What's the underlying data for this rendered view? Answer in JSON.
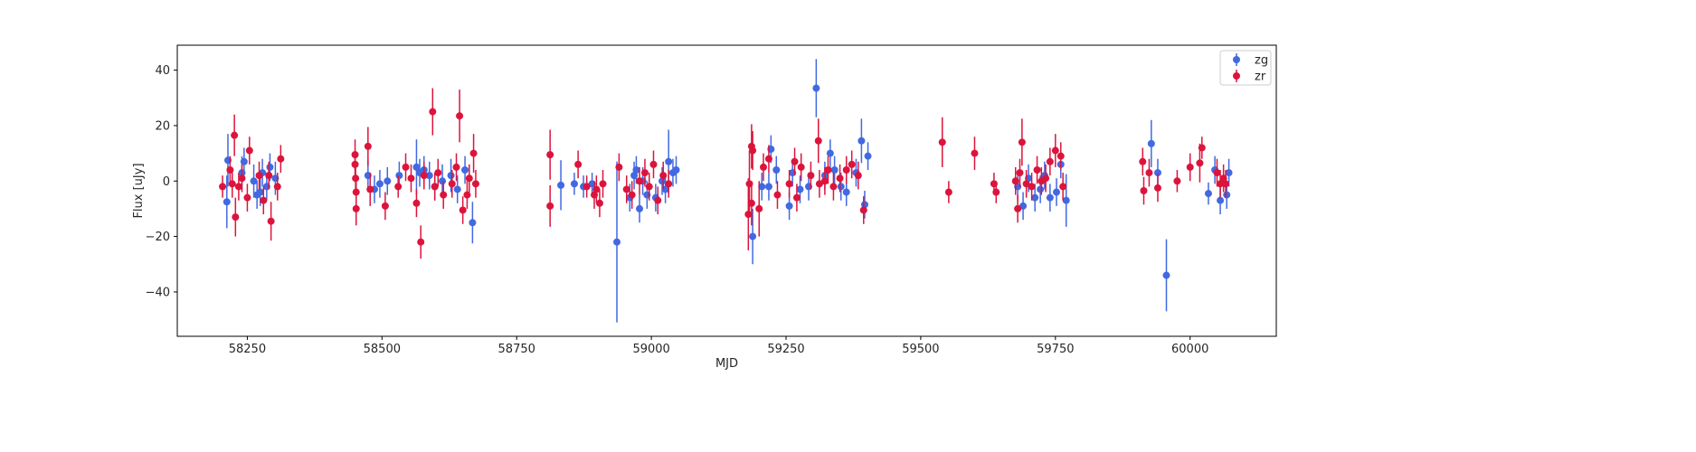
{
  "chart_data": {
    "type": "scatter",
    "title": "",
    "xlabel": "MJD",
    "ylabel": "Flux [uJy]",
    "xlim": [
      58120,
      60160
    ],
    "ylim": [
      -56,
      49
    ],
    "xticks": [
      58250,
      58500,
      58750,
      59000,
      59250,
      59500,
      59750,
      60000
    ],
    "yticks": [
      -40,
      -20,
      0,
      20,
      40
    ],
    "grid": false,
    "legend_position": "top-right",
    "series": [
      {
        "name": "zg",
        "color": "#4169e1",
        "points": [
          {
            "x": 58212,
            "y": -7.5,
            "err": 9.5
          },
          {
            "x": 58214,
            "y": 7.5,
            "err": 9.5
          },
          {
            "x": 58240,
            "y": 3,
            "err": 6
          },
          {
            "x": 58244,
            "y": 7,
            "err": 5
          },
          {
            "x": 58262,
            "y": 0,
            "err": 6
          },
          {
            "x": 58268,
            "y": -5,
            "err": 5
          },
          {
            "x": 58274,
            "y": -4,
            "err": 5
          },
          {
            "x": 58278,
            "y": 3,
            "err": 5
          },
          {
            "x": 58286,
            "y": -2,
            "err": 5
          },
          {
            "x": 58292,
            "y": 5,
            "err": 5
          },
          {
            "x": 58302,
            "y": 1,
            "err": 6
          },
          {
            "x": 58474,
            "y": 2,
            "err": 6
          },
          {
            "x": 58486,
            "y": -3,
            "err": 5
          },
          {
            "x": 58496,
            "y": -1,
            "err": 5
          },
          {
            "x": 58510,
            "y": 0,
            "err": 5
          },
          {
            "x": 58532,
            "y": 2,
            "err": 5
          },
          {
            "x": 58564,
            "y": 5,
            "err": 10
          },
          {
            "x": 58570,
            "y": 3,
            "err": 5
          },
          {
            "x": 58578,
            "y": 4,
            "err": 5
          },
          {
            "x": 58588,
            "y": 2,
            "err": 5
          },
          {
            "x": 58598,
            "y": -2,
            "err": 5
          },
          {
            "x": 58612,
            "y": 0,
            "err": 6
          },
          {
            "x": 58628,
            "y": 2,
            "err": 6
          },
          {
            "x": 58640,
            "y": -3,
            "err": 5
          },
          {
            "x": 58654,
            "y": 4,
            "err": 5
          },
          {
            "x": 58668,
            "y": -15,
            "err": 7.5
          },
          {
            "x": 58832,
            "y": -1.5,
            "err": 9
          },
          {
            "x": 58857,
            "y": -1,
            "err": 4
          },
          {
            "x": 58874,
            "y": -2,
            "err": 4
          },
          {
            "x": 58890,
            "y": -1,
            "err": 4
          },
          {
            "x": 58936,
            "y": -22,
            "err": 29
          },
          {
            "x": 58960,
            "y": -6,
            "err": 5
          },
          {
            "x": 58968,
            "y": 2,
            "err": 5
          },
          {
            "x": 58972,
            "y": 4,
            "err": 5
          },
          {
            "x": 58978,
            "y": -10,
            "err": 5
          },
          {
            "x": 58984,
            "y": 0,
            "err": 5
          },
          {
            "x": 58992,
            "y": -5,
            "err": 5
          },
          {
            "x": 59008,
            "y": -6,
            "err": 5
          },
          {
            "x": 59020,
            "y": 0,
            "err": 5
          },
          {
            "x": 59026,
            "y": -3,
            "err": 5
          },
          {
            "x": 59032,
            "y": 7,
            "err": 11.5
          },
          {
            "x": 59040,
            "y": 3,
            "err": 5
          },
          {
            "x": 59046,
            "y": 4,
            "err": 5
          },
          {
            "x": 59188,
            "y": -20,
            "err": 10
          },
          {
            "x": 59205,
            "y": -2,
            "err": 5
          },
          {
            "x": 59218,
            "y": -2,
            "err": 5
          },
          {
            "x": 59222,
            "y": 11.5,
            "err": 5
          },
          {
            "x": 59232,
            "y": 4,
            "err": 5
          },
          {
            "x": 59256,
            "y": -9,
            "err": 5
          },
          {
            "x": 59262,
            "y": 3,
            "err": 5
          },
          {
            "x": 59276,
            "y": -3,
            "err": 5
          },
          {
            "x": 59292,
            "y": -2,
            "err": 5
          },
          {
            "x": 59306,
            "y": 33.5,
            "err": 10.5
          },
          {
            "x": 59322,
            "y": 2,
            "err": 5
          },
          {
            "x": 59332,
            "y": 10,
            "err": 5
          },
          {
            "x": 59340,
            "y": 4,
            "err": 5
          },
          {
            "x": 59352,
            "y": -2,
            "err": 5
          },
          {
            "x": 59362,
            "y": -4,
            "err": 5
          },
          {
            "x": 59380,
            "y": 3,
            "err": 5
          },
          {
            "x": 59390,
            "y": 14.5,
            "err": 8
          },
          {
            "x": 59396,
            "y": -8.5,
            "err": 5
          },
          {
            "x": 59402,
            "y": 9,
            "err": 5
          },
          {
            "x": 59680,
            "y": -2,
            "err": 5
          },
          {
            "x": 59690,
            "y": -9,
            "err": 5
          },
          {
            "x": 59700,
            "y": 1,
            "err": 5
          },
          {
            "x": 59712,
            "y": -6,
            "err": 5
          },
          {
            "x": 59722,
            "y": -3,
            "err": 5
          },
          {
            "x": 59730,
            "y": 2,
            "err": 5
          },
          {
            "x": 59740,
            "y": -6,
            "err": 5
          },
          {
            "x": 59752,
            "y": -4,
            "err": 5
          },
          {
            "x": 59760,
            "y": 6,
            "err": 5
          },
          {
            "x": 59770,
            "y": -7,
            "err": 9.5
          },
          {
            "x": 59928,
            "y": 13.5,
            "err": 8.5
          },
          {
            "x": 59940,
            "y": 3,
            "err": 5
          },
          {
            "x": 59956,
            "y": -34,
            "err": 13
          },
          {
            "x": 60034,
            "y": -4.5,
            "err": 4
          },
          {
            "x": 60046,
            "y": 4,
            "err": 5
          },
          {
            "x": 60056,
            "y": -7,
            "err": 5
          },
          {
            "x": 60068,
            "y": -5,
            "err": 5
          },
          {
            "x": 60072,
            "y": 3,
            "err": 5
          }
        ]
      },
      {
        "name": "zr",
        "color": "#dc143c",
        "points": [
          {
            "x": 58204,
            "y": -2,
            "err": 4
          },
          {
            "x": 58218,
            "y": 4,
            "err": 5
          },
          {
            "x": 58222,
            "y": -1,
            "err": 5
          },
          {
            "x": 58226,
            "y": 16.5,
            "err": 7.5
          },
          {
            "x": 58228,
            "y": -13,
            "err": 7
          },
          {
            "x": 58234,
            "y": -2,
            "err": 5
          },
          {
            "x": 58240,
            "y": 1,
            "err": 5
          },
          {
            "x": 58250,
            "y": -6,
            "err": 5
          },
          {
            "x": 58254,
            "y": 11,
            "err": 5
          },
          {
            "x": 58272,
            "y": 2,
            "err": 5
          },
          {
            "x": 58280,
            "y": -7,
            "err": 5
          },
          {
            "x": 58290,
            "y": 2,
            "err": 5
          },
          {
            "x": 58294,
            "y": -14.5,
            "err": 7
          },
          {
            "x": 58306,
            "y": -2,
            "err": 5
          },
          {
            "x": 58312,
            "y": 8,
            "err": 5
          },
          {
            "x": 58450,
            "y": 9.5,
            "err": 5.5
          },
          {
            "x": 58450,
            "y": 6,
            "err": 5
          },
          {
            "x": 58451,
            "y": 1,
            "err": 5
          },
          {
            "x": 58452,
            "y": -4,
            "err": 5
          },
          {
            "x": 58452,
            "y": -10,
            "err": 6
          },
          {
            "x": 58474,
            "y": 12.5,
            "err": 7
          },
          {
            "x": 58478,
            "y": -3,
            "err": 6
          },
          {
            "x": 58506,
            "y": -9,
            "err": 5
          },
          {
            "x": 58530,
            "y": -2,
            "err": 4
          },
          {
            "x": 58544,
            "y": 5,
            "err": 5
          },
          {
            "x": 58554,
            "y": 1,
            "err": 5
          },
          {
            "x": 58564,
            "y": -8,
            "err": 5
          },
          {
            "x": 58572,
            "y": -22,
            "err": 6
          },
          {
            "x": 58578,
            "y": 2,
            "err": 5
          },
          {
            "x": 58594,
            "y": 25,
            "err": 8.5
          },
          {
            "x": 58598,
            "y": -2,
            "err": 5
          },
          {
            "x": 58604,
            "y": 3,
            "err": 5
          },
          {
            "x": 58614,
            "y": -5,
            "err": 5
          },
          {
            "x": 58630,
            "y": -1,
            "err": 5
          },
          {
            "x": 58638,
            "y": 5,
            "err": 5
          },
          {
            "x": 58644,
            "y": 23.5,
            "err": 9.5
          },
          {
            "x": 58650,
            "y": -10.5,
            "err": 5
          },
          {
            "x": 58658,
            "y": -5,
            "err": 5
          },
          {
            "x": 58662,
            "y": 1,
            "err": 5
          },
          {
            "x": 58670,
            "y": 10,
            "err": 7
          },
          {
            "x": 58674,
            "y": -1,
            "err": 5
          },
          {
            "x": 58812,
            "y": 9.5,
            "err": 9
          },
          {
            "x": 58812,
            "y": -9,
            "err": 7.5
          },
          {
            "x": 58864,
            "y": 6,
            "err": 5
          },
          {
            "x": 58880,
            "y": -2,
            "err": 4
          },
          {
            "x": 58894,
            "y": -5,
            "err": 5
          },
          {
            "x": 58898,
            "y": -3,
            "err": 5
          },
          {
            "x": 58904,
            "y": -8,
            "err": 5
          },
          {
            "x": 58910,
            "y": -1,
            "err": 5
          },
          {
            "x": 58940,
            "y": 5,
            "err": 5
          },
          {
            "x": 58954,
            "y": -3,
            "err": 5
          },
          {
            "x": 58964,
            "y": -5,
            "err": 5
          },
          {
            "x": 58978,
            "y": 0,
            "err": 5
          },
          {
            "x": 58988,
            "y": 3,
            "err": 5
          },
          {
            "x": 58996,
            "y": -2,
            "err": 5
          },
          {
            "x": 59004,
            "y": 6,
            "err": 5
          },
          {
            "x": 59012,
            "y": -7,
            "err": 5
          },
          {
            "x": 59022,
            "y": 2,
            "err": 5
          },
          {
            "x": 59032,
            "y": -1,
            "err": 5
          },
          {
            "x": 59180,
            "y": -12,
            "err": 13
          },
          {
            "x": 59182,
            "y": -1,
            "err": 12
          },
          {
            "x": 59186,
            "y": 12.5,
            "err": 8
          },
          {
            "x": 59188,
            "y": 11,
            "err": 7
          },
          {
            "x": 59186,
            "y": -8,
            "err": 8
          },
          {
            "x": 59200,
            "y": -10,
            "err": 10
          },
          {
            "x": 59208,
            "y": 5,
            "err": 5
          },
          {
            "x": 59218,
            "y": 8,
            "err": 5
          },
          {
            "x": 59234,
            "y": -5,
            "err": 5
          },
          {
            "x": 59256,
            "y": -1,
            "err": 5
          },
          {
            "x": 59266,
            "y": 7,
            "err": 5
          },
          {
            "x": 59270,
            "y": -6,
            "err": 5
          },
          {
            "x": 59278,
            "y": 5,
            "err": 5
          },
          {
            "x": 59296,
            "y": 2,
            "err": 5
          },
          {
            "x": 59310,
            "y": 14.5,
            "err": 8
          },
          {
            "x": 59312,
            "y": -1,
            "err": 5
          },
          {
            "x": 59322,
            "y": 0,
            "err": 5
          },
          {
            "x": 59328,
            "y": 4,
            "err": 5
          },
          {
            "x": 59338,
            "y": -2,
            "err": 5
          },
          {
            "x": 59350,
            "y": 1,
            "err": 5
          },
          {
            "x": 59362,
            "y": 4,
            "err": 5
          },
          {
            "x": 59372,
            "y": 6,
            "err": 5
          },
          {
            "x": 59384,
            "y": 2,
            "err": 5
          },
          {
            "x": 59394,
            "y": -10.5,
            "err": 5
          },
          {
            "x": 59540,
            "y": 14,
            "err": 9
          },
          {
            "x": 59552,
            "y": -4,
            "err": 4
          },
          {
            "x": 59600,
            "y": 10,
            "err": 6
          },
          {
            "x": 59636,
            "y": -1,
            "err": 4
          },
          {
            "x": 59640,
            "y": -4,
            "err": 4
          },
          {
            "x": 59676,
            "y": 0,
            "err": 5
          },
          {
            "x": 59680,
            "y": -10,
            "err": 5
          },
          {
            "x": 59684,
            "y": 3,
            "err": 5
          },
          {
            "x": 59688,
            "y": 14,
            "err": 8.5
          },
          {
            "x": 59696,
            "y": -1,
            "err": 5
          },
          {
            "x": 59706,
            "y": -2,
            "err": 5
          },
          {
            "x": 59716,
            "y": 4,
            "err": 5
          },
          {
            "x": 59724,
            "y": 0,
            "err": 5
          },
          {
            "x": 59732,
            "y": 1,
            "err": 5
          },
          {
            "x": 59740,
            "y": 7,
            "err": 5
          },
          {
            "x": 59750,
            "y": 11,
            "err": 6
          },
          {
            "x": 59760,
            "y": 9,
            "err": 5
          },
          {
            "x": 59764,
            "y": -2,
            "err": 5
          },
          {
            "x": 59912,
            "y": 7,
            "err": 5
          },
          {
            "x": 59914,
            "y": -3.5,
            "err": 5
          },
          {
            "x": 59924,
            "y": 3,
            "err": 5
          },
          {
            "x": 59940,
            "y": -2.5,
            "err": 5
          },
          {
            "x": 59976,
            "y": 0,
            "err": 4
          },
          {
            "x": 60000,
            "y": 5,
            "err": 5
          },
          {
            "x": 60018,
            "y": 6.5,
            "err": 7
          },
          {
            "x": 60022,
            "y": 12,
            "err": 4
          },
          {
            "x": 60050,
            "y": 3,
            "err": 5
          },
          {
            "x": 60056,
            "y": -1,
            "err": 5
          },
          {
            "x": 60062,
            "y": 1,
            "err": 5
          },
          {
            "x": 60066,
            "y": -1,
            "err": 5
          }
        ]
      }
    ]
  }
}
